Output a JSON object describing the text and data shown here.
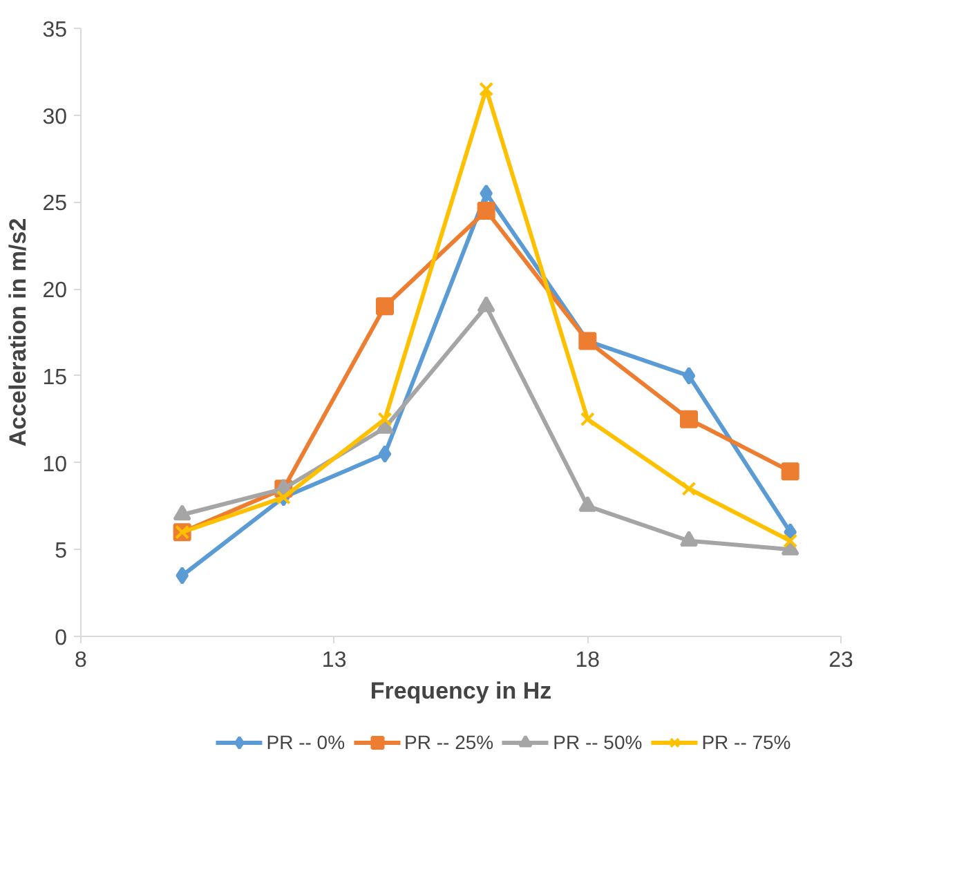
{
  "chart_data": {
    "type": "line",
    "xlabel": "Frequency in Hz",
    "ylabel": "Acceleration in m/s2",
    "x": [
      10,
      12,
      14,
      16,
      18,
      20,
      22
    ],
    "series": [
      {
        "name": "PR -- 0%",
        "color": "#5b9bd5",
        "marker": "diamond",
        "values": [
          3.5,
          8,
          10.5,
          25.5,
          17,
          15,
          6
        ]
      },
      {
        "name": "PR -- 25%",
        "color": "#ed7d31",
        "marker": "square",
        "values": [
          6,
          8.5,
          19,
          24.5,
          17,
          12.5,
          9.5
        ]
      },
      {
        "name": "PR -- 50%",
        "color": "#a5a5a5",
        "marker": "triangle",
        "values": [
          7,
          8.5,
          12,
          19,
          7.5,
          5.5,
          5
        ]
      },
      {
        "name": "PR -- 75%",
        "color": "#ffc000",
        "marker": "cross",
        "values": [
          6,
          8,
          12.5,
          31.5,
          12.5,
          8.5,
          5.5
        ]
      }
    ],
    "xlim": [
      8,
      23
    ],
    "xticks": [
      8,
      13,
      18,
      23
    ],
    "ylim": [
      0,
      35
    ],
    "yticks": [
      0,
      5,
      10,
      15,
      20,
      25,
      30,
      35
    ],
    "grid": false,
    "legend": "bottom"
  }
}
